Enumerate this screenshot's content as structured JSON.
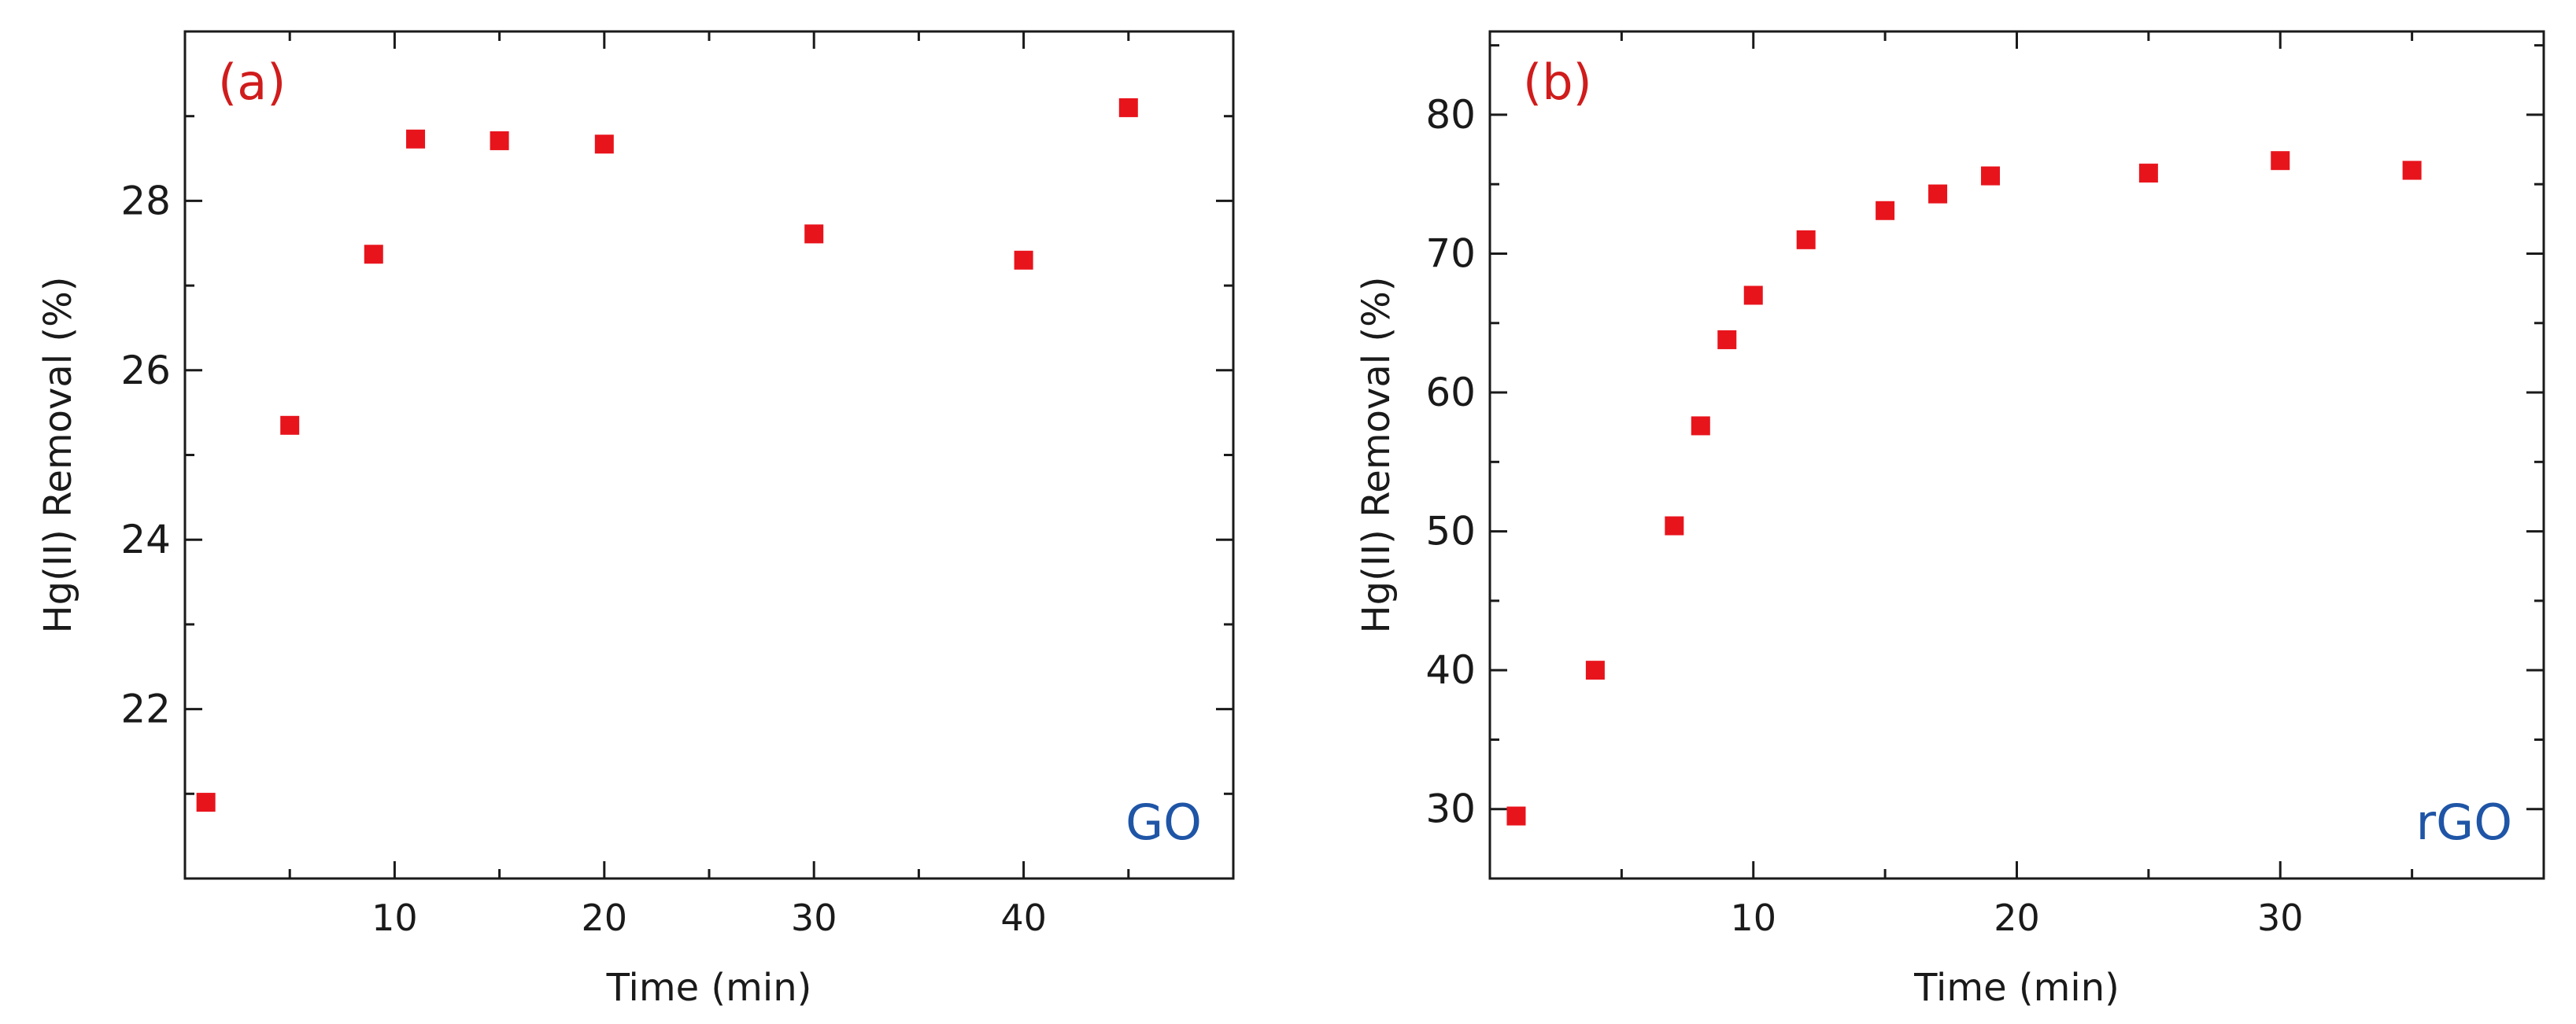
{
  "chart_data": [
    {
      "type": "scatter",
      "panel_label": "(a)",
      "series_label": "GO",
      "xlabel": "Time (min)",
      "ylabel": "Hg(II) Removal (%)",
      "xlim": [
        0,
        50
      ],
      "ylim": [
        20,
        30
      ],
      "xticks": [
        10,
        20,
        30,
        40
      ],
      "yticks": [
        22,
        24,
        26,
        28
      ],
      "x": [
        1,
        5,
        9,
        11,
        15,
        20,
        30,
        40,
        45
      ],
      "y": [
        20.9,
        25.35,
        27.37,
        28.73,
        28.71,
        28.67,
        27.61,
        27.3,
        29.1
      ],
      "marker_color": "#e8141c",
      "panel_label_color": "#d01c1c",
      "series_label_color": "#1f55a6"
    },
    {
      "type": "scatter",
      "panel_label": "(b)",
      "series_label": "rGO",
      "xlabel": "Time (min)",
      "ylabel": "Hg(II) Removal (%)",
      "xlim": [
        0,
        40
      ],
      "ylim": [
        25,
        86
      ],
      "xticks": [
        10,
        20,
        30
      ],
      "yticks": [
        30,
        40,
        50,
        60,
        70,
        80
      ],
      "x": [
        1,
        4,
        7,
        8,
        9,
        10,
        12,
        15,
        17,
        19,
        25,
        30,
        35
      ],
      "y": [
        29.5,
        40,
        50.4,
        57.6,
        63.8,
        67,
        71,
        73.1,
        74.3,
        75.6,
        75.8,
        76.7,
        76
      ],
      "marker_color": "#e8141c",
      "panel_label_color": "#d01c1c",
      "series_label_color": "#1f55a6"
    }
  ]
}
